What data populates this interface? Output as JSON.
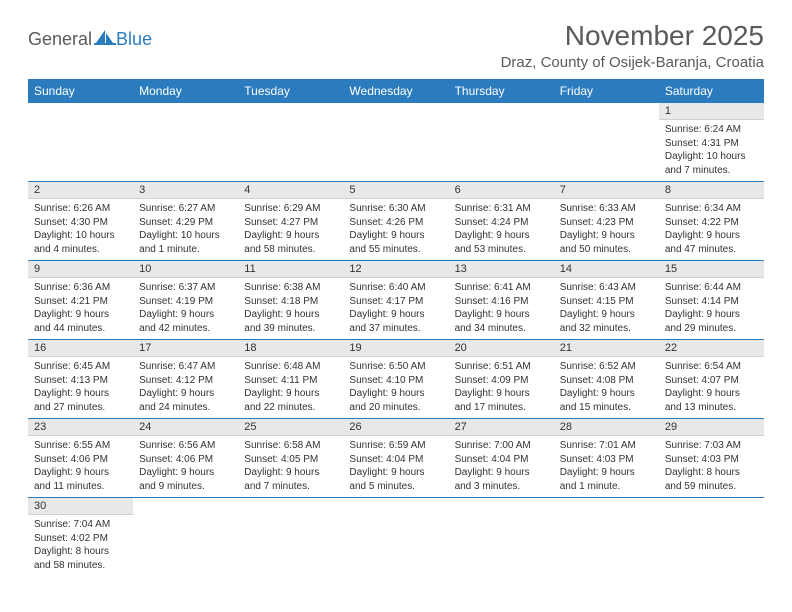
{
  "brand": {
    "part1": "General",
    "part2": "Blue"
  },
  "title": "November 2025",
  "location": "Draz, County of Osijek-Baranja, Croatia",
  "colors": {
    "header_bg": "#2b7bbf",
    "header_fg": "#ffffff",
    "daynum_bg": "#e8e8e8",
    "text": "#333333",
    "title_color": "#5a5a5a",
    "week_divider": "#2b7bbf"
  },
  "dayHeaders": [
    "Sunday",
    "Monday",
    "Tuesday",
    "Wednesday",
    "Thursday",
    "Friday",
    "Saturday"
  ],
  "weeks": [
    [
      null,
      null,
      null,
      null,
      null,
      null,
      {
        "n": "1",
        "sunrise": "Sunrise: 6:24 AM",
        "sunset": "Sunset: 4:31 PM",
        "daylight1": "Daylight: 10 hours",
        "daylight2": "and 7 minutes."
      }
    ],
    [
      {
        "n": "2",
        "sunrise": "Sunrise: 6:26 AM",
        "sunset": "Sunset: 4:30 PM",
        "daylight1": "Daylight: 10 hours",
        "daylight2": "and 4 minutes."
      },
      {
        "n": "3",
        "sunrise": "Sunrise: 6:27 AM",
        "sunset": "Sunset: 4:29 PM",
        "daylight1": "Daylight: 10 hours",
        "daylight2": "and 1 minute."
      },
      {
        "n": "4",
        "sunrise": "Sunrise: 6:29 AM",
        "sunset": "Sunset: 4:27 PM",
        "daylight1": "Daylight: 9 hours",
        "daylight2": "and 58 minutes."
      },
      {
        "n": "5",
        "sunrise": "Sunrise: 6:30 AM",
        "sunset": "Sunset: 4:26 PM",
        "daylight1": "Daylight: 9 hours",
        "daylight2": "and 55 minutes."
      },
      {
        "n": "6",
        "sunrise": "Sunrise: 6:31 AM",
        "sunset": "Sunset: 4:24 PM",
        "daylight1": "Daylight: 9 hours",
        "daylight2": "and 53 minutes."
      },
      {
        "n": "7",
        "sunrise": "Sunrise: 6:33 AM",
        "sunset": "Sunset: 4:23 PM",
        "daylight1": "Daylight: 9 hours",
        "daylight2": "and 50 minutes."
      },
      {
        "n": "8",
        "sunrise": "Sunrise: 6:34 AM",
        "sunset": "Sunset: 4:22 PM",
        "daylight1": "Daylight: 9 hours",
        "daylight2": "and 47 minutes."
      }
    ],
    [
      {
        "n": "9",
        "sunrise": "Sunrise: 6:36 AM",
        "sunset": "Sunset: 4:21 PM",
        "daylight1": "Daylight: 9 hours",
        "daylight2": "and 44 minutes."
      },
      {
        "n": "10",
        "sunrise": "Sunrise: 6:37 AM",
        "sunset": "Sunset: 4:19 PM",
        "daylight1": "Daylight: 9 hours",
        "daylight2": "and 42 minutes."
      },
      {
        "n": "11",
        "sunrise": "Sunrise: 6:38 AM",
        "sunset": "Sunset: 4:18 PM",
        "daylight1": "Daylight: 9 hours",
        "daylight2": "and 39 minutes."
      },
      {
        "n": "12",
        "sunrise": "Sunrise: 6:40 AM",
        "sunset": "Sunset: 4:17 PM",
        "daylight1": "Daylight: 9 hours",
        "daylight2": "and 37 minutes."
      },
      {
        "n": "13",
        "sunrise": "Sunrise: 6:41 AM",
        "sunset": "Sunset: 4:16 PM",
        "daylight1": "Daylight: 9 hours",
        "daylight2": "and 34 minutes."
      },
      {
        "n": "14",
        "sunrise": "Sunrise: 6:43 AM",
        "sunset": "Sunset: 4:15 PM",
        "daylight1": "Daylight: 9 hours",
        "daylight2": "and 32 minutes."
      },
      {
        "n": "15",
        "sunrise": "Sunrise: 6:44 AM",
        "sunset": "Sunset: 4:14 PM",
        "daylight1": "Daylight: 9 hours",
        "daylight2": "and 29 minutes."
      }
    ],
    [
      {
        "n": "16",
        "sunrise": "Sunrise: 6:45 AM",
        "sunset": "Sunset: 4:13 PM",
        "daylight1": "Daylight: 9 hours",
        "daylight2": "and 27 minutes."
      },
      {
        "n": "17",
        "sunrise": "Sunrise: 6:47 AM",
        "sunset": "Sunset: 4:12 PM",
        "daylight1": "Daylight: 9 hours",
        "daylight2": "and 24 minutes."
      },
      {
        "n": "18",
        "sunrise": "Sunrise: 6:48 AM",
        "sunset": "Sunset: 4:11 PM",
        "daylight1": "Daylight: 9 hours",
        "daylight2": "and 22 minutes."
      },
      {
        "n": "19",
        "sunrise": "Sunrise: 6:50 AM",
        "sunset": "Sunset: 4:10 PM",
        "daylight1": "Daylight: 9 hours",
        "daylight2": "and 20 minutes."
      },
      {
        "n": "20",
        "sunrise": "Sunrise: 6:51 AM",
        "sunset": "Sunset: 4:09 PM",
        "daylight1": "Daylight: 9 hours",
        "daylight2": "and 17 minutes."
      },
      {
        "n": "21",
        "sunrise": "Sunrise: 6:52 AM",
        "sunset": "Sunset: 4:08 PM",
        "daylight1": "Daylight: 9 hours",
        "daylight2": "and 15 minutes."
      },
      {
        "n": "22",
        "sunrise": "Sunrise: 6:54 AM",
        "sunset": "Sunset: 4:07 PM",
        "daylight1": "Daylight: 9 hours",
        "daylight2": "and 13 minutes."
      }
    ],
    [
      {
        "n": "23",
        "sunrise": "Sunrise: 6:55 AM",
        "sunset": "Sunset: 4:06 PM",
        "daylight1": "Daylight: 9 hours",
        "daylight2": "and 11 minutes."
      },
      {
        "n": "24",
        "sunrise": "Sunrise: 6:56 AM",
        "sunset": "Sunset: 4:06 PM",
        "daylight1": "Daylight: 9 hours",
        "daylight2": "and 9 minutes."
      },
      {
        "n": "25",
        "sunrise": "Sunrise: 6:58 AM",
        "sunset": "Sunset: 4:05 PM",
        "daylight1": "Daylight: 9 hours",
        "daylight2": "and 7 minutes."
      },
      {
        "n": "26",
        "sunrise": "Sunrise: 6:59 AM",
        "sunset": "Sunset: 4:04 PM",
        "daylight1": "Daylight: 9 hours",
        "daylight2": "and 5 minutes."
      },
      {
        "n": "27",
        "sunrise": "Sunrise: 7:00 AM",
        "sunset": "Sunset: 4:04 PM",
        "daylight1": "Daylight: 9 hours",
        "daylight2": "and 3 minutes."
      },
      {
        "n": "28",
        "sunrise": "Sunrise: 7:01 AM",
        "sunset": "Sunset: 4:03 PM",
        "daylight1": "Daylight: 9 hours",
        "daylight2": "and 1 minute."
      },
      {
        "n": "29",
        "sunrise": "Sunrise: 7:03 AM",
        "sunset": "Sunset: 4:03 PM",
        "daylight1": "Daylight: 8 hours",
        "daylight2": "and 59 minutes."
      }
    ],
    [
      {
        "n": "30",
        "sunrise": "Sunrise: 7:04 AM",
        "sunset": "Sunset: 4:02 PM",
        "daylight1": "Daylight: 8 hours",
        "daylight2": "and 58 minutes."
      },
      null,
      null,
      null,
      null,
      null,
      null
    ]
  ]
}
